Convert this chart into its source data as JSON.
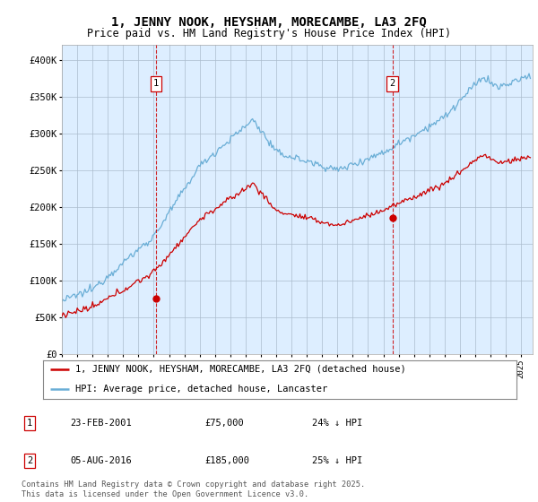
{
  "title": "1, JENNY NOOK, HEYSHAM, MORECAMBE, LA3 2FQ",
  "subtitle": "Price paid vs. HM Land Registry's House Price Index (HPI)",
  "title_fontsize": 10,
  "subtitle_fontsize": 8.5,
  "ylabel_ticks": [
    "£0",
    "£50K",
    "£100K",
    "£150K",
    "£200K",
    "£250K",
    "£300K",
    "£350K",
    "£400K"
  ],
  "ytick_values": [
    0,
    50000,
    100000,
    150000,
    200000,
    250000,
    300000,
    350000,
    400000
  ],
  "ylim": [
    0,
    420000
  ],
  "xlim_start": 1995.0,
  "xlim_end": 2025.75,
  "hpi_color": "#6aaed6",
  "price_color": "#cc0000",
  "marker_color": "#cc0000",
  "vline_color": "#cc0000",
  "background_color": "#ffffff",
  "chart_bg_color": "#ddeeff",
  "grid_color": "#aabbcc",
  "sale1_date": 2001.14,
  "sale1_price": 75000,
  "sale2_date": 2016.59,
  "sale2_price": 185000,
  "legend_label1": "1, JENNY NOOK, HEYSHAM, MORECAMBE, LA3 2FQ (detached house)",
  "legend_label2": "HPI: Average price, detached house, Lancaster",
  "table_row1": [
    "1",
    "23-FEB-2001",
    "£75,000",
    "24% ↓ HPI"
  ],
  "table_row2": [
    "2",
    "05-AUG-2016",
    "£185,000",
    "25% ↓ HPI"
  ],
  "footer": "Contains HM Land Registry data © Crown copyright and database right 2025.\nThis data is licensed under the Open Government Licence v3.0."
}
